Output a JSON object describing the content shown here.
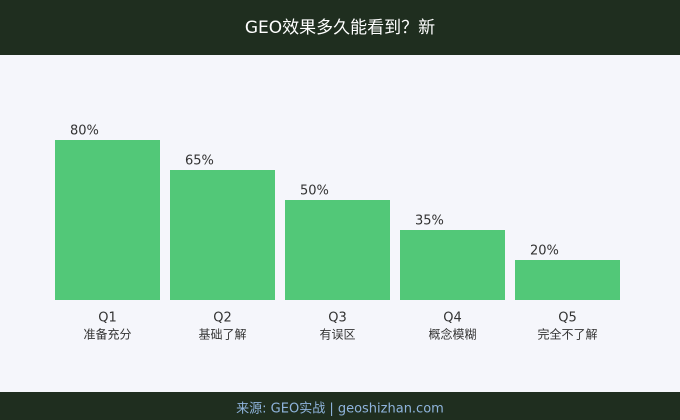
{
  "chart_data": {
    "type": "bar",
    "title": "GEO效果多久能看到？新",
    "categories": [
      "Q1",
      "Q2",
      "Q3",
      "Q4",
      "Q5"
    ],
    "subcategories": [
      "准备充分",
      "基础了解",
      "有误区",
      "概念模糊",
      "完全不了解"
    ],
    "values": [
      80,
      65,
      50,
      35,
      20
    ],
    "value_labels": [
      "80%",
      "65%",
      "50%",
      "35%",
      "20%"
    ],
    "color": "#52c878",
    "source": "来源: GEO实战 | geoshizhan.com"
  }
}
